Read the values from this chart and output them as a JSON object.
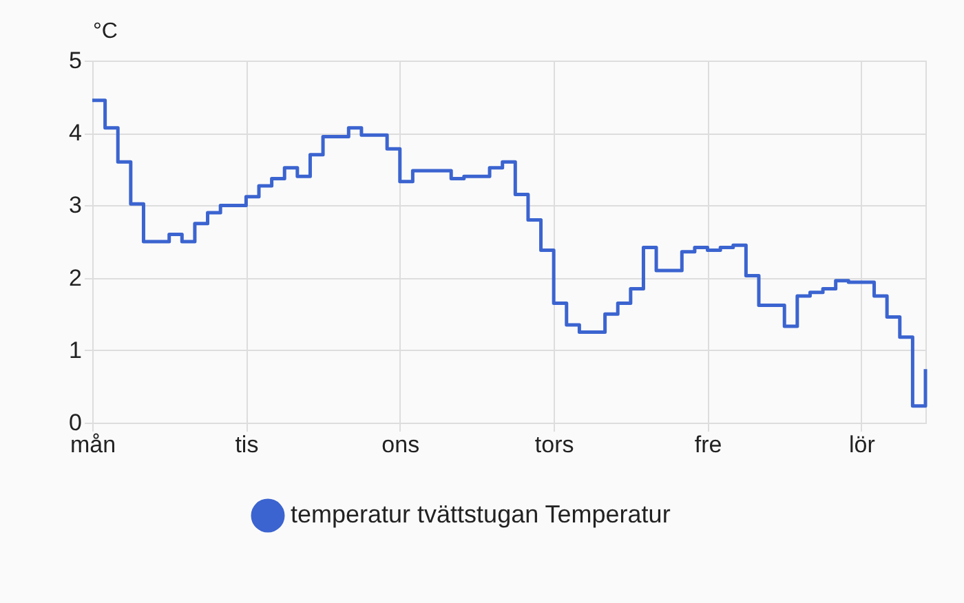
{
  "chart_data": {
    "type": "step",
    "ylabel": "°C",
    "categories": [
      "mån",
      null,
      null,
      null,
      null,
      null,
      null,
      null,
      null,
      null,
      null,
      null,
      "tis",
      null,
      null,
      null,
      null,
      null,
      null,
      null,
      null,
      null,
      null,
      null,
      "ons",
      null,
      null,
      null,
      null,
      null,
      null,
      null,
      null,
      null,
      null,
      null,
      "tors",
      null,
      null,
      null,
      null,
      null,
      null,
      null,
      null,
      null,
      null,
      null,
      "fre",
      null,
      null,
      null,
      null,
      null,
      null,
      null,
      null,
      null,
      null,
      null,
      "lör",
      null,
      null,
      null,
      null,
      null
    ],
    "series": [
      {
        "name": "temperatur tvättstugan Temperatur",
        "color": "#3b64d0",
        "values": [
          4.45,
          4.07,
          3.6,
          3.02,
          2.5,
          2.5,
          2.6,
          2.5,
          2.75,
          2.9,
          3.0,
          3.0,
          3.12,
          3.27,
          3.37,
          3.52,
          3.4,
          3.7,
          3.95,
          3.95,
          4.07,
          3.97,
          3.97,
          3.78,
          3.33,
          3.48,
          3.48,
          3.48,
          3.37,
          3.4,
          3.4,
          3.52,
          3.6,
          3.15,
          2.8,
          2.38,
          1.65,
          1.35,
          1.25,
          1.25,
          1.5,
          1.65,
          1.85,
          2.42,
          2.1,
          2.1,
          2.36,
          2.42,
          2.38,
          2.42,
          2.45,
          2.03,
          1.62,
          1.62,
          1.33,
          1.75,
          1.8,
          1.85,
          1.96,
          1.94,
          1.94,
          1.75,
          1.46,
          1.18,
          0.23,
          0.74
        ]
      }
    ],
    "ylim": [
      0,
      5
    ],
    "yticks": [
      0,
      1,
      2,
      3,
      4,
      5
    ],
    "grid": true,
    "legend": "bottom",
    "marker": "none",
    "line_style": "solid"
  }
}
